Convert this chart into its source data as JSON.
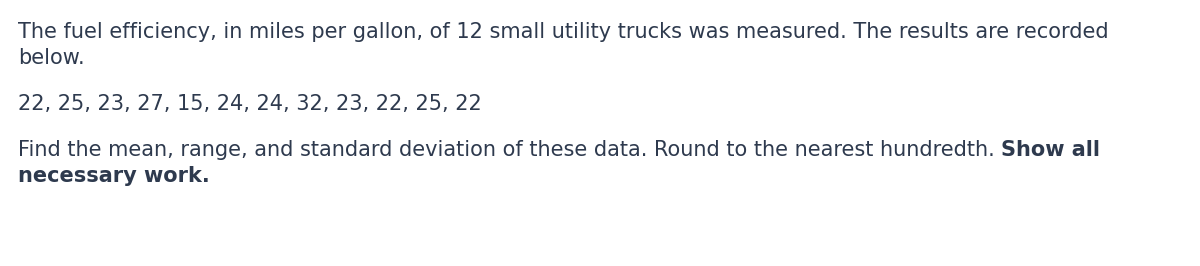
{
  "background_color": "#ffffff",
  "text_color": "#2e3a4e",
  "line1": "The fuel efficiency, in miles per gallon, of 12 small utility trucks was measured. The results are recorded",
  "line2": "below.",
  "line3": "22, 25, 23, 27, 15, 24, 24, 32, 23, 22, 25, 22",
  "line4_normal": "Find the mean, range, and standard deviation of these data. Round to the nearest hundredth. ",
  "line4_bold": "Show all",
  "line5_bold": "necessary work.",
  "font_size": 15.0,
  "fig_width": 12.0,
  "fig_height": 2.66,
  "dpi": 100
}
